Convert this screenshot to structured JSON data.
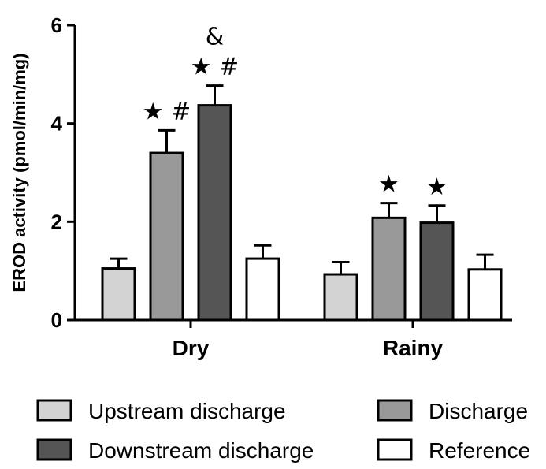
{
  "chart_data": {
    "type": "bar",
    "title": "",
    "xlabel": "",
    "ylabel": "EROD activity (pmol/min/mg)",
    "ylim": [
      0,
      6
    ],
    "yticks": [
      "0",
      "2",
      "4",
      "6"
    ],
    "grid": false,
    "legend_position": "bottom",
    "categories": [
      "Dry",
      "Rainy"
    ],
    "series": [
      {
        "name": "Upstream discharge",
        "color": "#d3d3d3",
        "values": [
          1.05,
          0.93
        ],
        "errors": [
          0.2,
          0.25
        ],
        "annotations": [
          "",
          ""
        ]
      },
      {
        "name": "Discharge",
        "color": "#999999",
        "values": [
          3.4,
          2.08
        ],
        "errors": [
          0.46,
          0.3
        ],
        "annotations": [
          "★ #",
          "★"
        ]
      },
      {
        "name": "Downstream discharge",
        "color": "#555555",
        "values": [
          4.37,
          1.98
        ],
        "errors": [
          0.4,
          0.35
        ],
        "annotations": [
          "★ #",
          "★"
        ]
      },
      {
        "name": "Reference",
        "color": "#ffffff",
        "values": [
          1.25,
          1.03
        ],
        "errors": [
          0.27,
          0.3
        ],
        "annotations": [
          "",
          ""
        ]
      }
    ],
    "extra_annotations": [
      {
        "category_index": 0,
        "series_index": 2,
        "text": "&"
      }
    ]
  }
}
